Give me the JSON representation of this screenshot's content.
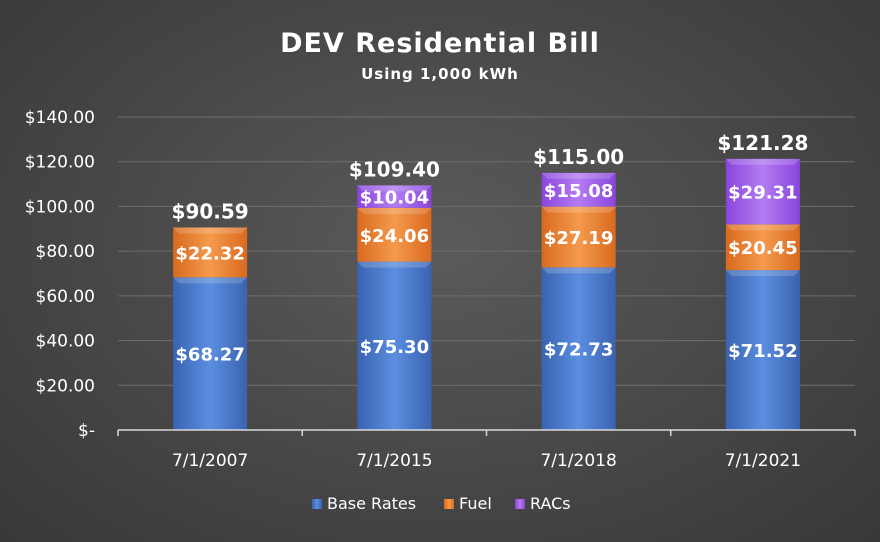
{
  "chart_data": {
    "type": "bar",
    "stacked": true,
    "title": "DEV Residential Bill",
    "subtitle": "Using 1,000 kWh",
    "categories": [
      "7/1/2007",
      "7/1/2015",
      "7/1/2018",
      "7/1/2021"
    ],
    "series": [
      {
        "name": "Base Rates",
        "values": [
          68.27,
          75.3,
          72.73,
          71.52
        ],
        "labels": [
          "$68.27",
          "$75.30",
          "$72.73",
          "$71.52"
        ],
        "color": "#4472c4"
      },
      {
        "name": "Fuel",
        "values": [
          22.32,
          24.06,
          27.19,
          20.45
        ],
        "labels": [
          "$22.32",
          "$24.06",
          "$27.19",
          "$20.45"
        ],
        "color": "#ed7d31"
      },
      {
        "name": "RACs",
        "values": [
          0,
          10.04,
          15.08,
          29.31
        ],
        "labels": [
          "",
          "$10.04",
          "$15.08",
          "$29.31"
        ],
        "color": "#9b59e8"
      }
    ],
    "totals": [
      90.59,
      109.4,
      115.0,
      121.28
    ],
    "total_labels": [
      "$90.59",
      "$109.40",
      "$115.00",
      "$121.28"
    ],
    "ylim": [
      0,
      140
    ],
    "yticks": [
      0,
      20,
      40,
      60,
      80,
      100,
      120,
      140
    ],
    "ytick_labels": [
      "$-",
      "$20.00",
      "$40.00",
      "$60.00",
      "$80.00",
      "$100.00",
      "$120.00",
      "$140.00"
    ],
    "grid": true,
    "legend_position": "bottom",
    "background": "#474747"
  }
}
